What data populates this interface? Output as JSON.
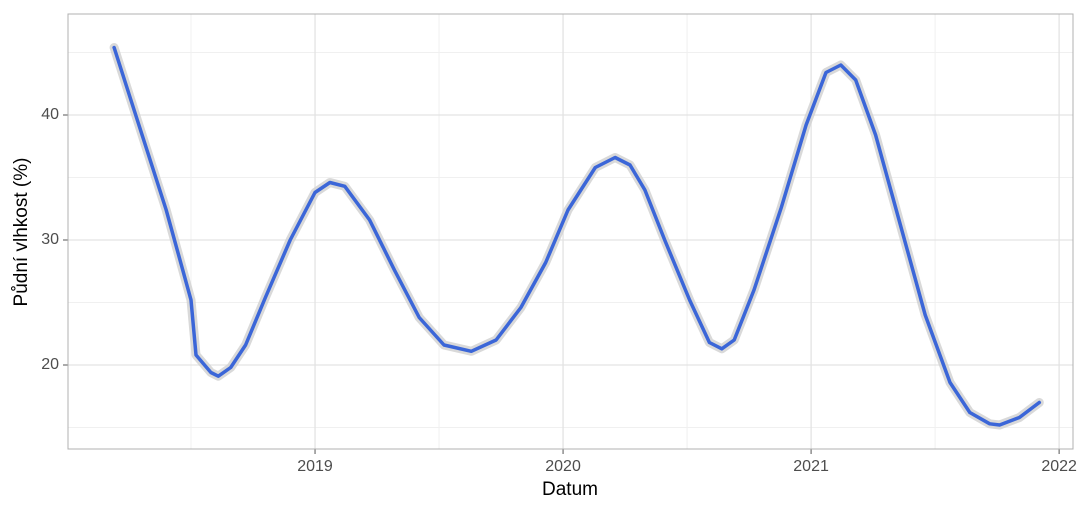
{
  "chart_data": {
    "type": "line",
    "xlabel": "Datum",
    "ylabel": "Půdní vlhkost (%)",
    "x": [
      2018.19,
      2018.29,
      2018.4,
      2018.5,
      2018.52,
      2018.58,
      2018.61,
      2018.66,
      2018.72,
      2018.8,
      2018.9,
      2019.0,
      2019.06,
      2019.12,
      2019.22,
      2019.32,
      2019.42,
      2019.52,
      2019.63,
      2019.73,
      2019.83,
      2019.93,
      2020.02,
      2020.13,
      2020.21,
      2020.27,
      2020.33,
      2020.41,
      2020.51,
      2020.59,
      2020.64,
      2020.69,
      2020.77,
      2020.88,
      2020.98,
      2021.06,
      2021.12,
      2021.18,
      2021.26,
      2021.36,
      2021.46,
      2021.56,
      2021.64,
      2021.72,
      2021.76,
      2021.84,
      2021.92
    ],
    "values": [
      45.4,
      39.2,
      32.4,
      25.2,
      20.8,
      19.4,
      19.1,
      19.8,
      21.6,
      25.4,
      30.0,
      33.8,
      34.6,
      34.3,
      31.6,
      27.6,
      23.8,
      21.6,
      21.1,
      22.0,
      24.6,
      28.2,
      32.4,
      35.8,
      36.6,
      36.0,
      34.0,
      30.0,
      25.2,
      21.8,
      21.3,
      22.0,
      26.0,
      32.6,
      39.2,
      43.4,
      44.0,
      42.8,
      38.4,
      31.2,
      24.0,
      18.6,
      16.2,
      15.3,
      15.2,
      15.8,
      17.0
    ],
    "color": "#3b66d8",
    "xlim": [
      2018.004,
      2022.056
    ],
    "xticks": [
      2019,
      2020,
      2021,
      2022
    ],
    "xminor": [
      2018.5,
      2019.5,
      2020.5,
      2021.5
    ],
    "ylim": [
      13.28,
      48.08
    ],
    "yticks": [
      20,
      30,
      40
    ],
    "yminor": [
      15,
      25,
      35,
      45
    ],
    "grid": true
  }
}
